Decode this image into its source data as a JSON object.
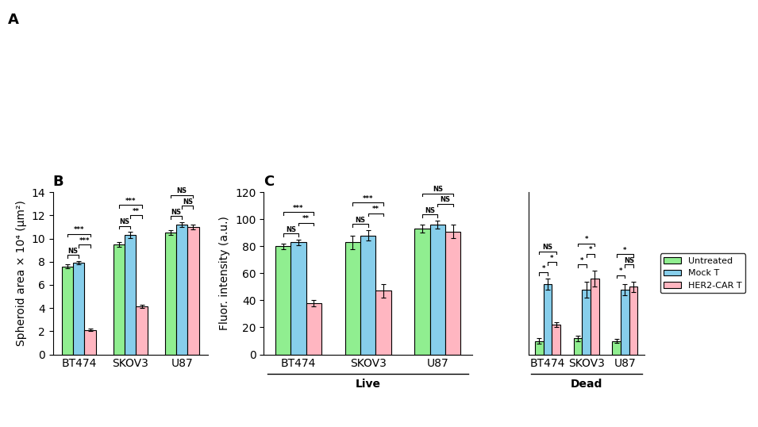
{
  "chart_data": [
    {
      "type": "bar",
      "title": "B",
      "categories": [
        "BT474",
        "SKOV3",
        "U87"
      ],
      "ylabel": "Spheroid area × 10⁴ (μm²)",
      "ylim": [
        0,
        14
      ],
      "yticks": [
        0,
        2,
        4,
        6,
        8,
        10,
        12,
        14
      ],
      "series": [
        {
          "name": "Untreated",
          "color": "#90EE90",
          "values": [
            7.6,
            9.5,
            10.5
          ],
          "errors": [
            0.15,
            0.2,
            0.2
          ]
        },
        {
          "name": "Mock T",
          "color": "#87CEEB",
          "values": [
            7.9,
            10.3,
            11.2
          ],
          "errors": [
            0.15,
            0.25,
            0.2
          ]
        },
        {
          "name": "HER2-CAR T",
          "color": "#FFB6C1",
          "values": [
            2.1,
            4.15,
            11.0
          ],
          "errors": [
            0.1,
            0.15,
            0.2
          ]
        }
      ],
      "significance": [
        {
          "category": "BT474",
          "pair": [
            "Untreated",
            "Mock T"
          ],
          "text": "NS"
        },
        {
          "category": "BT474",
          "pair": [
            "Mock T",
            "HER2-CAR T"
          ],
          "text": "***"
        },
        {
          "category": "BT474",
          "pair": [
            "Untreated",
            "HER2-CAR T"
          ],
          "text": "***"
        },
        {
          "category": "SKOV3",
          "pair": [
            "Untreated",
            "Mock T"
          ],
          "text": "NS"
        },
        {
          "category": "SKOV3",
          "pair": [
            "Mock T",
            "HER2-CAR T"
          ],
          "text": "**"
        },
        {
          "category": "SKOV3",
          "pair": [
            "Untreated",
            "HER2-CAR T"
          ],
          "text": "***"
        },
        {
          "category": "U87",
          "pair": [
            "Untreated",
            "Mock T"
          ],
          "text": "NS"
        },
        {
          "category": "U87",
          "pair": [
            "Mock T",
            "HER2-CAR T"
          ],
          "text": "NS"
        },
        {
          "category": "U87",
          "pair": [
            "Untreated",
            "HER2-CAR T"
          ],
          "text": "NS"
        }
      ]
    },
    {
      "type": "bar",
      "title": "C",
      "xlabel": "Live",
      "categories": [
        "BT474",
        "SKOV3",
        "U87"
      ],
      "ylabel": "Fluor. intensity (a.u.)",
      "ylim": [
        0,
        120
      ],
      "yticks": [
        0,
        20,
        40,
        60,
        80,
        100,
        120
      ],
      "series": [
        {
          "name": "Untreated",
          "color": "#90EE90",
          "values": [
            80,
            83,
            93
          ],
          "errors": [
            2.0,
            5.0,
            3.0
          ]
        },
        {
          "name": "Mock T",
          "color": "#87CEEB",
          "values": [
            83,
            88,
            96
          ],
          "errors": [
            2.0,
            4.0,
            3.0
          ]
        },
        {
          "name": "HER2-CAR T",
          "color": "#FFB6C1",
          "values": [
            38,
            47,
            91
          ],
          "errors": [
            2.5,
            5.0,
            5.0
          ]
        }
      ],
      "significance": [
        {
          "category": "BT474",
          "pair": [
            "Untreated",
            "Mock T"
          ],
          "text": "NS"
        },
        {
          "category": "BT474",
          "pair": [
            "Mock T",
            "HER2-CAR T"
          ],
          "text": "**"
        },
        {
          "category": "BT474",
          "pair": [
            "Untreated",
            "HER2-CAR T"
          ],
          "text": "***"
        },
        {
          "category": "SKOV3",
          "pair": [
            "Untreated",
            "Mock T"
          ],
          "text": "NS"
        },
        {
          "category": "SKOV3",
          "pair": [
            "Mock T",
            "HER2-CAR T"
          ],
          "text": "**"
        },
        {
          "category": "SKOV3",
          "pair": [
            "Untreated",
            "HER2-CAR T"
          ],
          "text": "***"
        },
        {
          "category": "U87",
          "pair": [
            "Untreated",
            "Mock T"
          ],
          "text": "NS"
        },
        {
          "category": "U87",
          "pair": [
            "Mock T",
            "HER2-CAR T"
          ],
          "text": "NS"
        },
        {
          "category": "U87",
          "pair": [
            "Untreated",
            "HER2-CAR T"
          ],
          "text": "NS"
        }
      ]
    },
    {
      "type": "bar",
      "xlabel": "Dead",
      "categories": [
        "BT474",
        "SKOV3",
        "U87"
      ],
      "ylim": [
        0,
        30
      ],
      "tick_labels": "x",
      "legend": "center left",
      "series": [
        {
          "name": "Untreated",
          "color": "#90EE90",
          "values": [
            2.5,
            3.0,
            2.5
          ],
          "errors": [
            0.5,
            0.5,
            0.4
          ]
        },
        {
          "name": "Mock T",
          "color": "#87CEEB",
          "values": [
            13.0,
            12.0,
            12.0
          ],
          "errors": [
            1.0,
            1.5,
            1.0
          ]
        },
        {
          "name": "HER2-CAR T",
          "color": "#FFB6C1",
          "values": [
            5.5,
            14.0,
            12.5
          ],
          "errors": [
            0.5,
            1.5,
            1.0
          ]
        }
      ],
      "significance": [
        {
          "category": "BT474",
          "pair": [
            "Untreated",
            "Mock T"
          ],
          "text": "*"
        },
        {
          "category": "BT474",
          "pair": [
            "Mock T",
            "HER2-CAR T"
          ],
          "text": "*"
        },
        {
          "category": "BT474",
          "pair": [
            "Untreated",
            "HER2-CAR T"
          ],
          "text": "NS"
        },
        {
          "category": "SKOV3",
          "pair": [
            "Untreated",
            "Mock T"
          ],
          "text": "*"
        },
        {
          "category": "SKOV3",
          "pair": [
            "Mock T",
            "HER2-CAR T"
          ],
          "text": "*"
        },
        {
          "category": "SKOV3",
          "pair": [
            "Untreated",
            "HER2-CAR T"
          ],
          "text": "*"
        },
        {
          "category": "U87",
          "pair": [
            "Untreated",
            "Mock T"
          ],
          "text": "*"
        },
        {
          "category": "U87",
          "pair": [
            "Mock T",
            "HER2-CAR T"
          ],
          "text": "NS"
        },
        {
          "category": "U87",
          "pair": [
            "Untreated",
            "HER2-CAR T"
          ],
          "text": "*"
        }
      ]
    }
  ],
  "annotations": [
    {
      "text": "A"
    }
  ]
}
